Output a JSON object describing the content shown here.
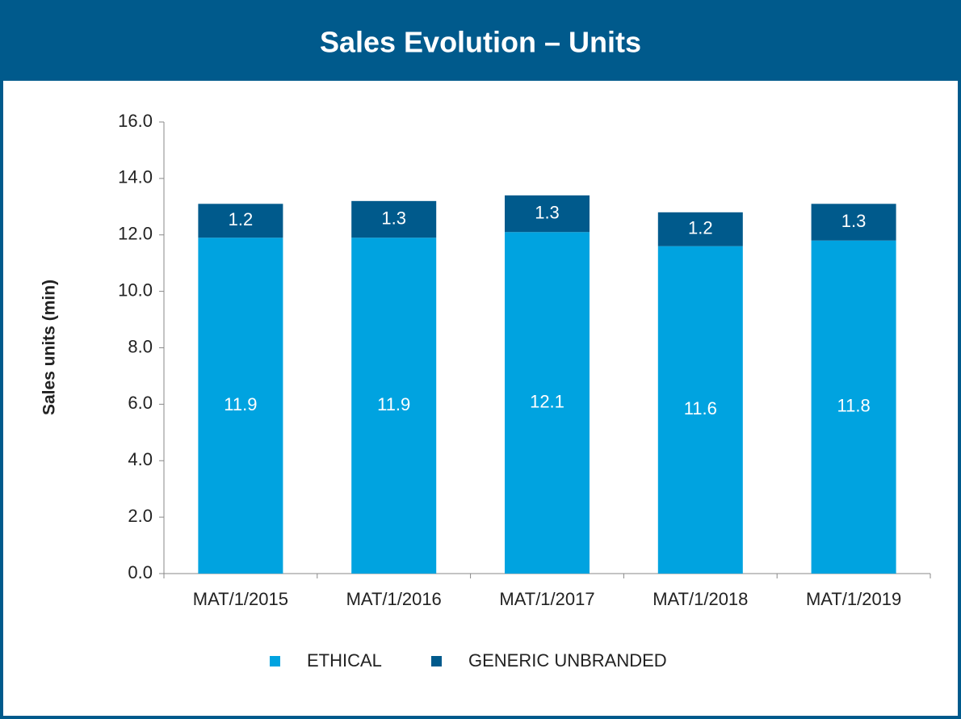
{
  "chart_data": {
    "type": "stacked_bar",
    "title": "Sales Evolution – Units",
    "y_label": "Sales units (min)",
    "categories": [
      "MAT/1/2015",
      "MAT/1/2016",
      "MAT/1/2017",
      "MAT/1/2018",
      "MAT/1/2019"
    ],
    "series": [
      {
        "name": "ETHICAL",
        "color": "#00a3e0",
        "values": [
          11.9,
          11.9,
          12.1,
          11.6,
          11.8
        ]
      },
      {
        "name": "GENERIC UNBRANDED",
        "color": "#005a8c",
        "values": [
          1.2,
          1.3,
          1.3,
          1.2,
          1.3
        ]
      }
    ],
    "ylim": [
      0,
      16
    ],
    "yticks": [
      {
        "value": 0,
        "label": "0.0"
      },
      {
        "value": 2,
        "label": "2.0"
      },
      {
        "value": 4,
        "label": "4.0"
      },
      {
        "value": 6,
        "label": "6.0"
      },
      {
        "value": 8,
        "label": "8.0"
      },
      {
        "value": 10,
        "label": "10.0"
      },
      {
        "value": 12,
        "label": "12.0"
      },
      {
        "value": 14,
        "label": "14.0"
      },
      {
        "value": 16,
        "label": "16.0"
      }
    ],
    "legend": "bottom"
  }
}
